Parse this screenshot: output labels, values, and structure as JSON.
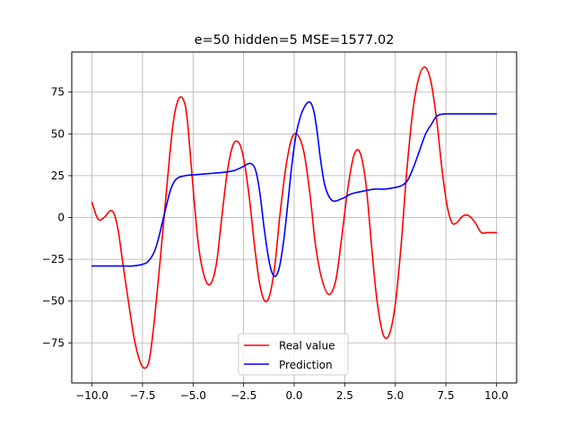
{
  "chart_data": {
    "type": "line",
    "title": "e=50 hidden=5 MSE=1577.02",
    "xlabel": "",
    "ylabel": "",
    "xlim": [
      -11.0,
      11.0
    ],
    "ylim": [
      -99.0,
      99.0
    ],
    "grid": true,
    "legend_position": "bottom-center",
    "xticks": [
      -10.0,
      -7.5,
      -5.0,
      -2.5,
      0.0,
      2.5,
      5.0,
      7.5,
      10.0
    ],
    "xtick_labels": [
      "−10.0",
      "−7.5",
      "−5.0",
      "−2.5",
      "0.0",
      "2.5",
      "5.0",
      "7.5",
      "10.0"
    ],
    "yticks": [
      75,
      50,
      25,
      0,
      -25,
      -50,
      -75
    ],
    "ytick_labels": [
      "75",
      "50",
      "25",
      "0",
      "−25",
      "−50",
      "−75"
    ],
    "series": [
      {
        "name": "Real value",
        "color": "#ff0000",
        "x": [
          -10.0,
          -9.7,
          -9.4,
          -9.1,
          -8.9,
          -8.7,
          -8.5,
          -8.2,
          -7.9,
          -7.6,
          -7.35,
          -7.15,
          -6.9,
          -6.6,
          -6.3,
          -6.0,
          -5.75,
          -5.5,
          -5.3,
          -5.05,
          -4.75,
          -4.45,
          -4.15,
          -3.85,
          -3.6,
          -3.3,
          -3.0,
          -2.7,
          -2.45,
          -2.2,
          -1.95,
          -1.7,
          -1.45,
          -1.2,
          -0.95,
          -0.7,
          -0.4,
          -0.1,
          0.2,
          0.5,
          0.8,
          1.05,
          1.35,
          1.7,
          2.05,
          2.35,
          2.65,
          2.95,
          3.25,
          3.55,
          3.85,
          4.1,
          4.4,
          4.7,
          5.0,
          5.3,
          5.55,
          5.85,
          6.15,
          6.45,
          6.75,
          7.05,
          7.3,
          7.55,
          7.8,
          8.05,
          8.35,
          8.65,
          8.95,
          9.25,
          9.55,
          9.8,
          10.0
        ],
        "y": [
          9,
          -1,
          0,
          4,
          2,
          -8,
          -25,
          -50,
          -73,
          -87,
          -90,
          -84,
          -60,
          -22,
          18,
          55,
          70,
          71,
          60,
          25,
          -15,
          -35,
          -40,
          -28,
          -2,
          28,
          44,
          44,
          32,
          10,
          -18,
          -40,
          -50,
          -46,
          -28,
          2,
          31,
          48,
          49,
          38,
          12,
          -16,
          -36,
          -46,
          -38,
          -12,
          17,
          37,
          39,
          20,
          -20,
          -50,
          -70,
          -70,
          -52,
          -15,
          25,
          62,
          83,
          90,
          82,
          58,
          30,
          8,
          -3,
          -3,
          1,
          1,
          -3,
          -9,
          -9,
          -9,
          -9
        ]
      },
      {
        "name": "Prediction",
        "color": "#0000ff",
        "x": [
          -10.0,
          -9.5,
          -9.0,
          -8.5,
          -8.0,
          -7.5,
          -7.2,
          -6.9,
          -6.7,
          -6.5,
          -6.3,
          -6.1,
          -5.9,
          -5.7,
          -5.4,
          -5.0,
          -4.5,
          -4.0,
          -3.5,
          -3.0,
          -2.6,
          -2.3,
          -2.1,
          -1.9,
          -1.7,
          -1.5,
          -1.3,
          -1.15,
          -1.0,
          -0.85,
          -0.7,
          -0.5,
          -0.3,
          -0.1,
          0.1,
          0.3,
          0.5,
          0.7,
          0.85,
          1.0,
          1.15,
          1.3,
          1.5,
          1.7,
          1.9,
          2.1,
          2.3,
          2.5,
          2.8,
          3.1,
          3.5,
          4.0,
          4.5,
          5.0,
          5.3,
          5.6,
          5.9,
          6.2,
          6.5,
          6.8,
          7.0,
          7.2,
          7.5,
          8.0,
          8.5,
          9.0,
          9.5,
          10.0
        ],
        "y": [
          -29,
          -29,
          -29,
          -29,
          -29,
          -28,
          -26,
          -20,
          -12,
          -2,
          8,
          17,
          22,
          24,
          25,
          25.5,
          26,
          26.5,
          27,
          28,
          30,
          32,
          32,
          28,
          15,
          -5,
          -22,
          -31,
          -35,
          -34,
          -28,
          -12,
          10,
          33,
          50,
          60,
          66,
          69,
          68,
          62,
          50,
          35,
          20,
          13,
          10,
          10,
          11,
          12,
          14,
          15,
          16,
          17,
          17,
          18,
          19,
          22,
          30,
          40,
          50,
          56,
          60,
          61.5,
          62,
          62,
          62,
          62,
          62,
          62
        ]
      }
    ]
  }
}
